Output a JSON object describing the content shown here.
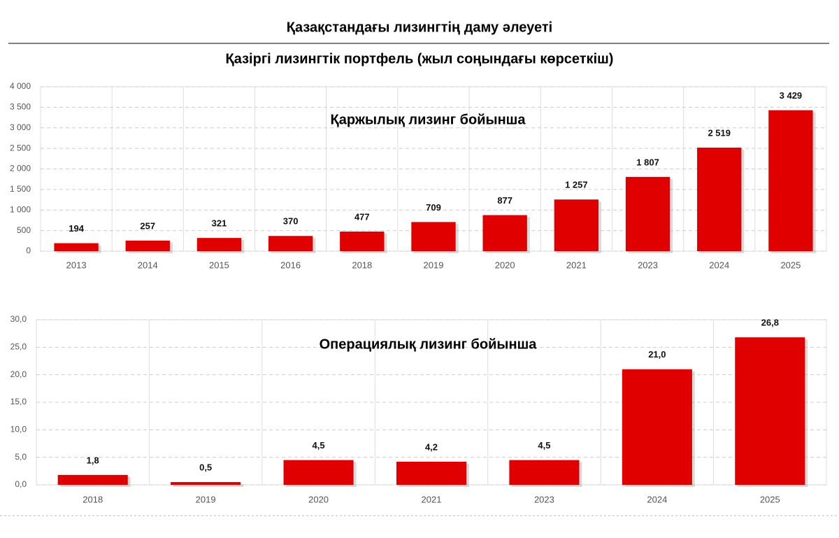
{
  "title": "Қазақстандағы лизингтің даму әлеуеті",
  "subtitle": "Қазіргі лизингтік портфель (жыл соңындағы көрсеткіш)",
  "chart_data": [
    {
      "type": "bar",
      "title": "Қаржылық лизинг бойынша",
      "categories": [
        "2013",
        "2014",
        "2015",
        "2016",
        "2018",
        "2019",
        "2020",
        "2021",
        "2023",
        "2024",
        "2025"
      ],
      "values": [
        194,
        257,
        321,
        370,
        477,
        709,
        877,
        1257,
        1807,
        2519,
        3429
      ],
      "value_labels": [
        "194",
        "257",
        "321",
        "370",
        "477",
        "709",
        "877",
        "1 257",
        "1 807",
        "2 519",
        "3 429"
      ],
      "color": "#e00000",
      "ylim": [
        0,
        4000
      ],
      "yticks": [
        0,
        500,
        {
          "value": 1000,
          "label": "1 000"
        },
        {
          "value": 1500,
          "label": "1 500"
        },
        {
          "value": 2000,
          "label": "2 000"
        },
        {
          "value": 2500,
          "label": "2 500"
        },
        {
          "value": 3000,
          "label": "3 000"
        },
        {
          "value": 3500,
          "label": "3 500"
        },
        {
          "value": 4000,
          "label": "4 000"
        }
      ],
      "grid": true
    },
    {
      "type": "bar",
      "title": "Операциялық лизинг бойынша",
      "categories": [
        "2018",
        "2019",
        "2020",
        "2021",
        "2023",
        "2024",
        "2025"
      ],
      "values": [
        1.8,
        0.5,
        4.5,
        4.2,
        4.5,
        21.0,
        26.8
      ],
      "value_labels": [
        "1,8",
        "0,5",
        "4,5",
        "4,2",
        "4,5",
        "21,0",
        "26,8"
      ],
      "color": "#e00000",
      "ylim": [
        0,
        30
      ],
      "yticks": [
        {
          "value": 0,
          "label": "0,0"
        },
        {
          "value": 5,
          "label": "5,0"
        },
        {
          "value": 10,
          "label": "10,0"
        },
        {
          "value": 15,
          "label": "15,0"
        },
        {
          "value": 20,
          "label": "20,0"
        },
        {
          "value": 25,
          "label": "25,0"
        },
        {
          "value": 30,
          "label": "30,0"
        }
      ],
      "grid": true
    }
  ]
}
